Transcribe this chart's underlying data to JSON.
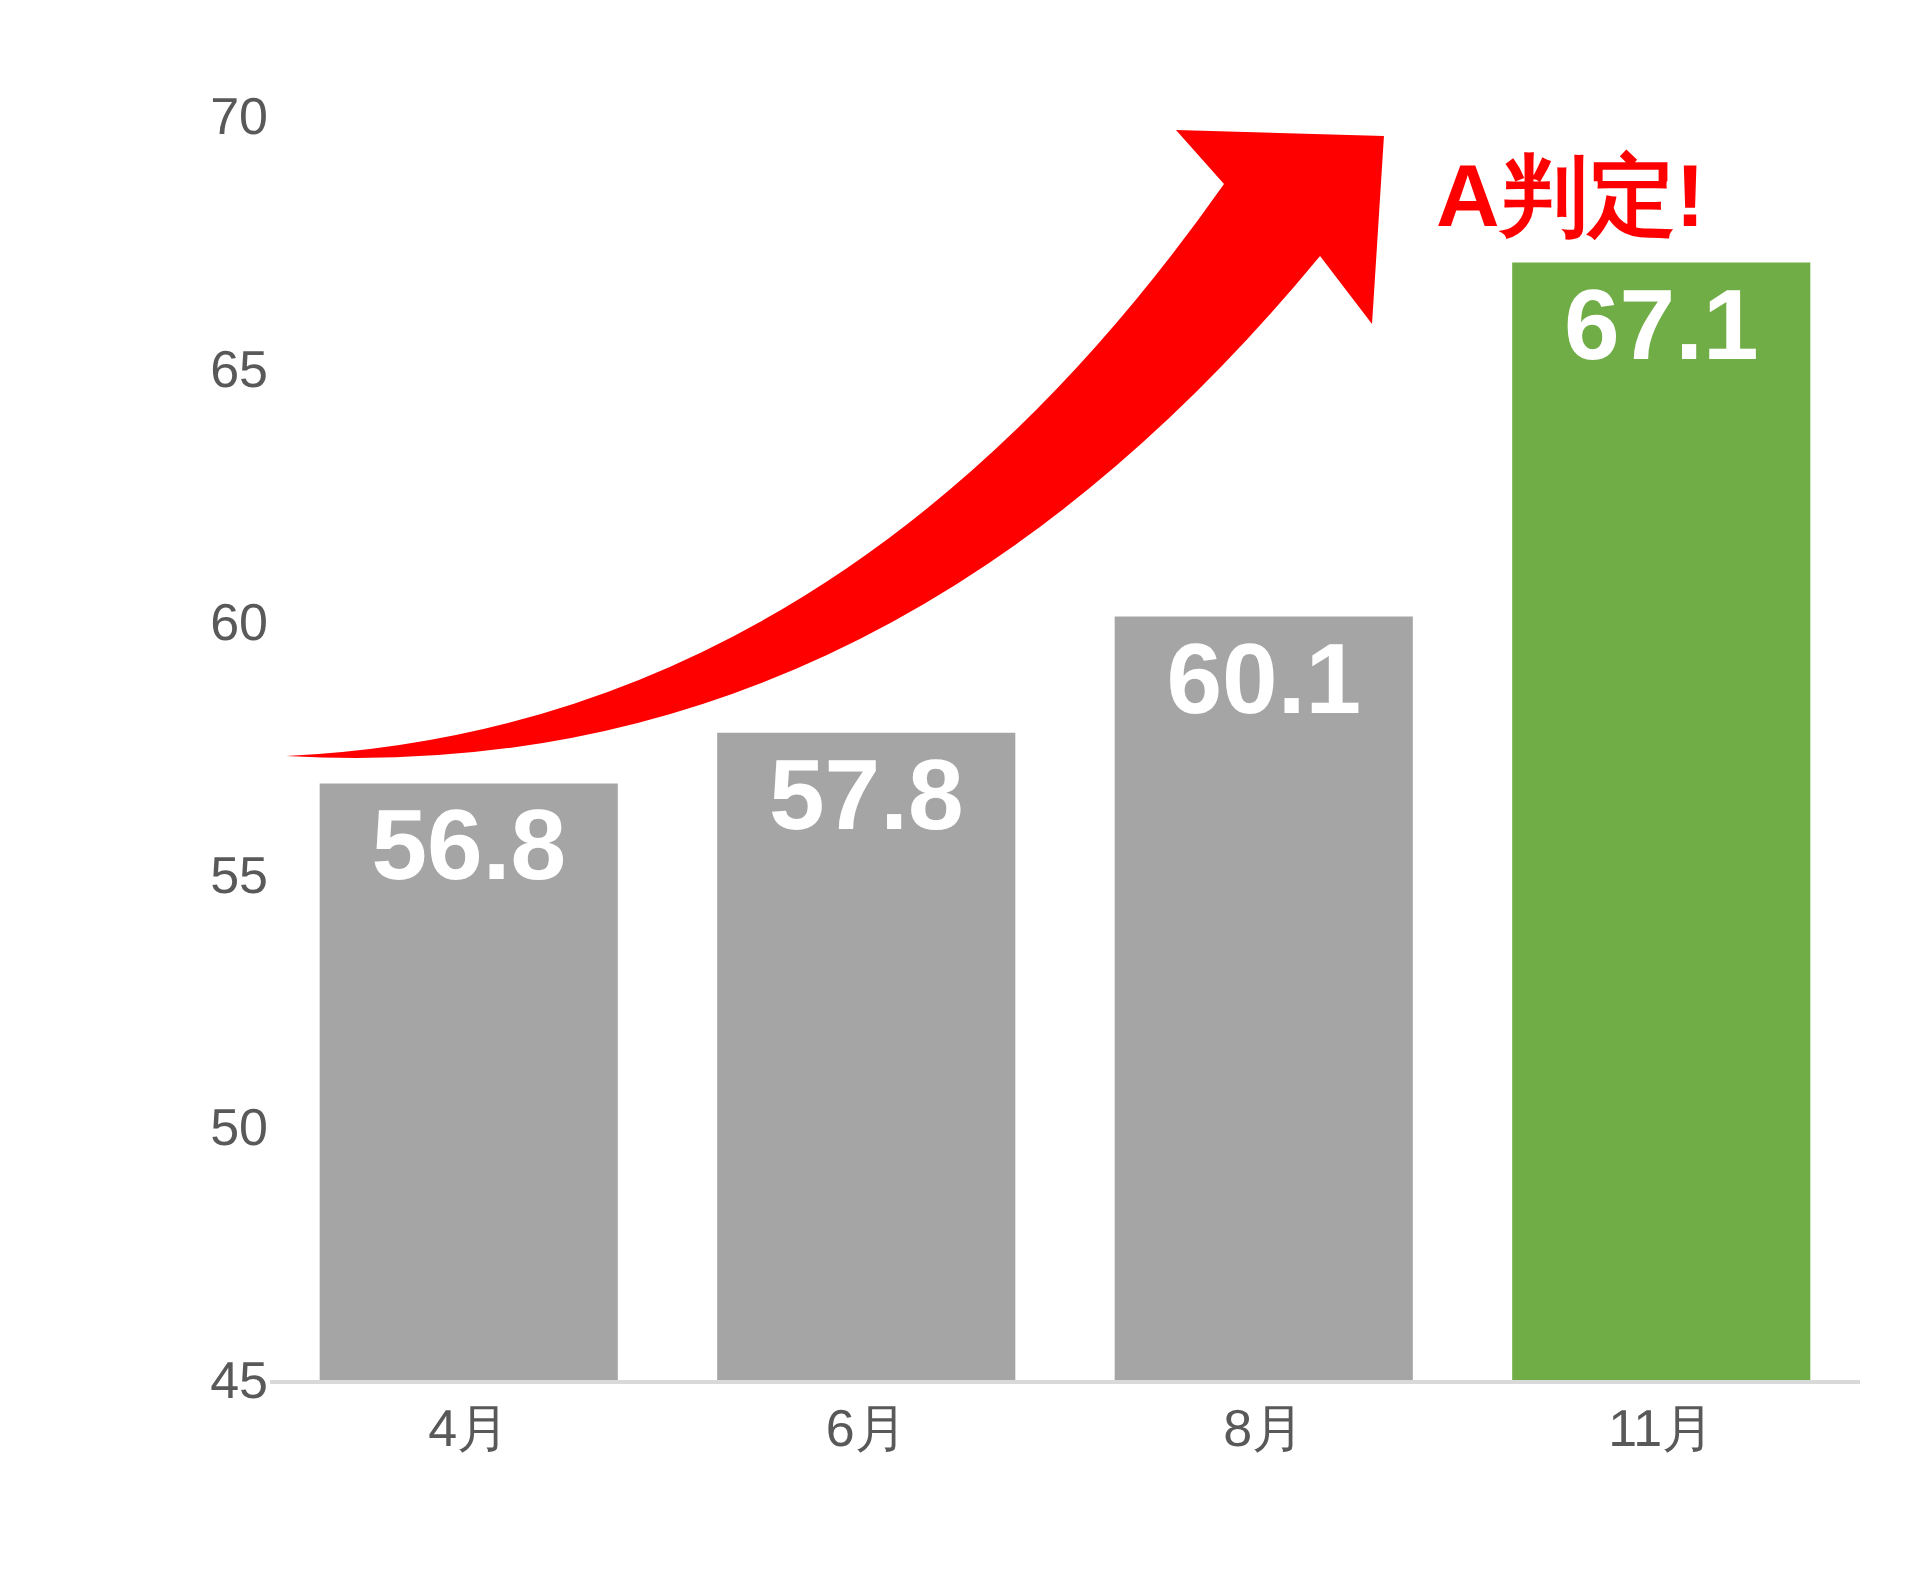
{
  "chart_data": {
    "type": "bar",
    "categories": [
      "4月",
      "6月",
      "8月",
      "11月"
    ],
    "values": [
      56.8,
      57.8,
      60.1,
      67.1
    ],
    "colors": [
      "#a5a5a5",
      "#a5a5a5",
      "#a5a5a5",
      "#70ad47"
    ],
    "ylim": [
      45,
      70
    ],
    "yticks": [
      45,
      50,
      55,
      60,
      65,
      70
    ],
    "data_labels": true,
    "annotations": [
      "A判定!"
    ]
  }
}
